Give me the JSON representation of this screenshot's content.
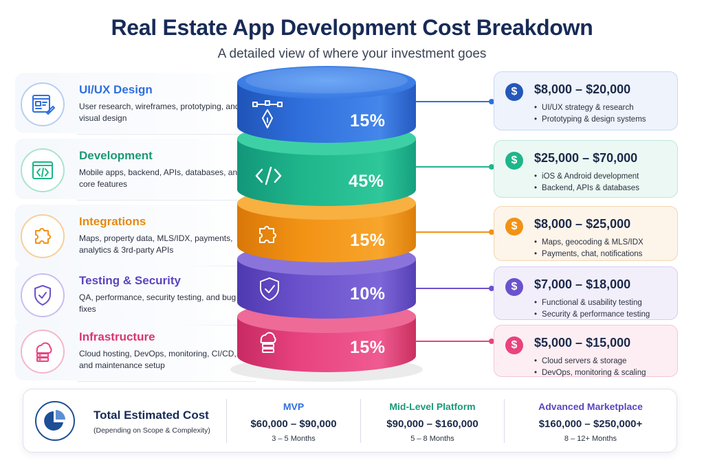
{
  "header": {
    "title": "Real Estate App Development Cost Breakdown",
    "subtitle": "A detailed view of where your investment goes"
  },
  "colors": {
    "blue": "#2f6fdc",
    "green": "#1fb58a",
    "orange": "#f29214",
    "purple": "#6b52cc",
    "pink": "#e8437f",
    "navy": "#172b57"
  },
  "categories": [
    {
      "title": "UI/UX Design",
      "desc": "User research, wireframes, prototyping, and visual design",
      "icon": "design-doc-icon",
      "percent": "15%",
      "segment_icon": "pen-tool-icon",
      "cost": "$8,000 – $20,000",
      "bullets": [
        "UI/UX strategy & research",
        "Prototyping & design systems"
      ]
    },
    {
      "title": "Development",
      "desc": "Mobile apps, backend, APIs, databases, and core features",
      "icon": "code-window-icon",
      "percent": "45%",
      "segment_icon": "code-icon",
      "cost": "$25,000 – $70,000",
      "bullets": [
        "iOS & Android development",
        "Backend, APIs & databases"
      ]
    },
    {
      "title": "Integrations",
      "desc": "Maps, property data, MLS/IDX, payments, analytics & 3rd-party APIs",
      "icon": "puzzle-icon",
      "percent": "15%",
      "segment_icon": "puzzle-icon",
      "cost": "$8,000 – $25,000",
      "bullets": [
        "Maps, geocoding & MLS/IDX",
        "Payments, chat, notifications"
      ]
    },
    {
      "title": "Testing & Security",
      "desc": "QA, performance, security testing, and bug fixes",
      "icon": "shield-check-icon",
      "percent": "10%",
      "segment_icon": "shield-check-icon",
      "cost": "$7,000 – $18,000",
      "bullets": [
        "Functional & usability testing",
        "Security & performance testing"
      ]
    },
    {
      "title": "Infrastructure",
      "desc": "Cloud hosting, DevOps, monitoring, CI/CD, and maintenance setup",
      "icon": "cloud-server-icon",
      "percent": "15%",
      "segment_icon": "cloud-server-icon",
      "cost": "$5,000 – $15,000",
      "bullets": [
        "Cloud servers & storage",
        "DevOps, monitoring & scaling"
      ]
    }
  ],
  "total": {
    "title": "Total Estimated Cost",
    "note": "(Depending on Scope & Complexity)",
    "icon": "pie-chart-icon",
    "tiers": [
      {
        "name": "MVP",
        "price": "$60,000 – $90,000",
        "time": "3 – 5 Months"
      },
      {
        "name": "Mid-Level Platform",
        "price": "$90,000 – $160,000",
        "time": "5 – 8 Months"
      },
      {
        "name": "Advanced Marketplace",
        "price": "$160,000 – $250,000+",
        "time": "8 – 12+ Months"
      }
    ]
  }
}
